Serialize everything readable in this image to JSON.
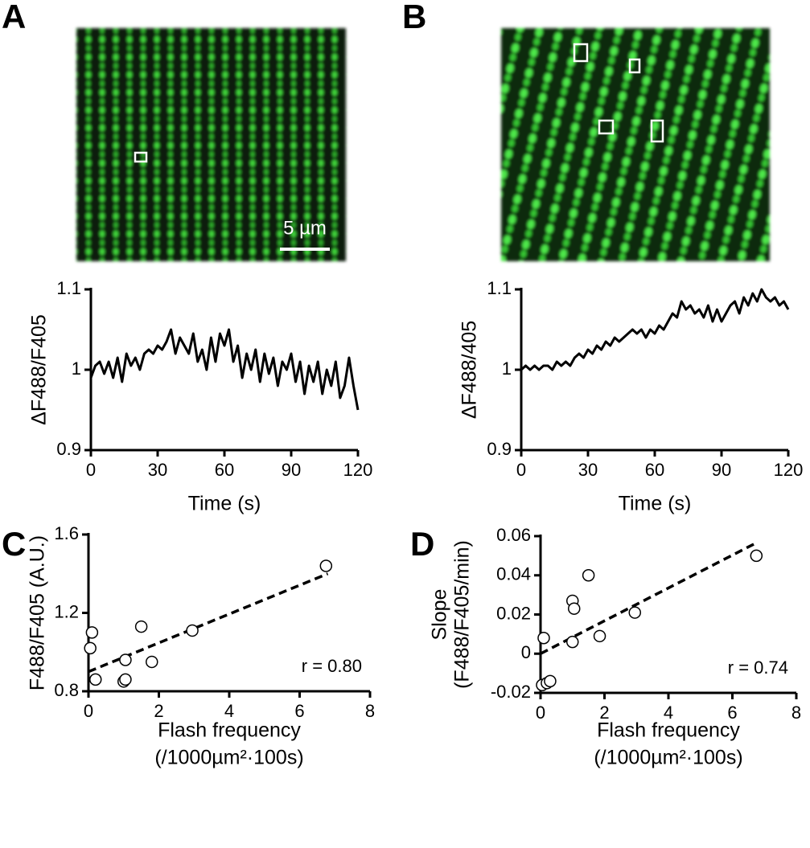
{
  "panel_labels": [
    "A",
    "B",
    "C",
    "D"
  ],
  "scale_bar": "5 µm",
  "chart_data": [
    {
      "type": "line",
      "ylabel": "ΔF488/F405",
      "xlabel": "Time (s)",
      "xlim": [
        0,
        120
      ],
      "xticks": [
        0,
        30,
        60,
        90,
        120
      ],
      "ylim": [
        0.9,
        1.1
      ],
      "yticks": [
        0.9,
        1,
        1.1
      ],
      "color": "#000000",
      "x": [
        0,
        2,
        4,
        6,
        8,
        10,
        12,
        14,
        16,
        18,
        20,
        22,
        24,
        26,
        28,
        30,
        32,
        34,
        36,
        38,
        40,
        42,
        44,
        46,
        48,
        50,
        52,
        54,
        56,
        58,
        60,
        62,
        64,
        66,
        68,
        70,
        72,
        74,
        76,
        78,
        80,
        82,
        84,
        86,
        88,
        90,
        92,
        94,
        96,
        98,
        100,
        102,
        104,
        106,
        108,
        110,
        112,
        114,
        116,
        118,
        120
      ],
      "values": [
        0.99,
        1.005,
        1.01,
        0.995,
        1.01,
        0.99,
        1.015,
        0.985,
        1.02,
        1.005,
        1.015,
        1.0,
        1.02,
        1.025,
        1.02,
        1.03,
        1.025,
        1.035,
        1.05,
        1.02,
        1.04,
        1.03,
        1.02,
        1.045,
        1.01,
        1.025,
        1.0,
        1.04,
        1.01,
        1.045,
        1.03,
        1.05,
        1.01,
        1.03,
        0.99,
        1.02,
        1.0,
        1.025,
        0.985,
        1.02,
        0.995,
        1.015,
        0.98,
        1.01,
        1.0,
        1.02,
        0.985,
        1.01,
        0.97,
        1.005,
        0.985,
        1.01,
        0.97,
        1.0,
        0.98,
        1.01,
        0.965,
        0.98,
        1.015,
        0.98,
        0.95
      ]
    },
    {
      "type": "line",
      "ylabel": "ΔF488/405",
      "xlabel": "Time (s)",
      "xlim": [
        0,
        120
      ],
      "xticks": [
        0,
        30,
        60,
        90,
        120
      ],
      "ylim": [
        0.9,
        1.1
      ],
      "yticks": [
        0.9,
        1,
        1.1
      ],
      "color": "#000000",
      "x": [
        0,
        2,
        4,
        6,
        8,
        10,
        12,
        14,
        16,
        18,
        20,
        22,
        24,
        26,
        28,
        30,
        32,
        34,
        36,
        38,
        40,
        42,
        44,
        46,
        48,
        50,
        52,
        54,
        56,
        58,
        60,
        62,
        64,
        66,
        68,
        70,
        72,
        74,
        76,
        78,
        80,
        82,
        84,
        86,
        88,
        90,
        92,
        94,
        96,
        98,
        100,
        102,
        104,
        106,
        108,
        110,
        112,
        114,
        116,
        118,
        120
      ],
      "values": [
        1.0,
        1.005,
        1.0,
        1.005,
        1.0,
        1.005,
        1.005,
        1.0,
        1.01,
        1.005,
        1.01,
        1.005,
        1.015,
        1.02,
        1.015,
        1.025,
        1.02,
        1.03,
        1.025,
        1.035,
        1.03,
        1.04,
        1.035,
        1.04,
        1.045,
        1.05,
        1.045,
        1.05,
        1.04,
        1.05,
        1.045,
        1.055,
        1.05,
        1.06,
        1.07,
        1.065,
        1.085,
        1.075,
        1.08,
        1.07,
        1.075,
        1.065,
        1.08,
        1.06,
        1.075,
        1.06,
        1.07,
        1.08,
        1.085,
        1.07,
        1.09,
        1.08,
        1.095,
        1.085,
        1.1,
        1.09,
        1.085,
        1.09,
        1.08,
        1.085,
        1.075
      ]
    },
    {
      "type": "scatter",
      "ylabel": [
        "F488/F405 (A.U.)"
      ],
      "xlabel": [
        "Flash frequency",
        "(/1000µm²·100s)"
      ],
      "xlim": [
        0,
        8
      ],
      "xticks": [
        0,
        2,
        4,
        6,
        8
      ],
      "ylim": [
        0.8,
        1.6
      ],
      "yticks": [
        0.8,
        1.2,
        1.6
      ],
      "x": [
        0.05,
        0.1,
        0.2,
        1.0,
        1.05,
        1.05,
        1.5,
        1.8,
        2.95,
        6.75
      ],
      "values": [
        1.02,
        1.1,
        0.86,
        0.85,
        0.86,
        0.96,
        1.13,
        0.95,
        1.11,
        1.44
      ],
      "fit": {
        "x": [
          0,
          6.8
        ],
        "y": [
          0.9,
          1.4
        ]
      },
      "annotation": "r = 0.80"
    },
    {
      "type": "scatter",
      "ylabel": [
        "Slope",
        "(F488/F405/min)"
      ],
      "xlabel": [
        "Flash frequency",
        "(/1000µm²·100s)"
      ],
      "xlim": [
        0,
        8
      ],
      "xticks": [
        0,
        2,
        4,
        6,
        8
      ],
      "ylim": [
        -0.02,
        0.06
      ],
      "yticks": [
        -0.02,
        0,
        0.02,
        0.04,
        0.06
      ],
      "x": [
        0.05,
        0.1,
        0.2,
        0.3,
        1.0,
        1.0,
        1.05,
        1.5,
        1.85,
        2.95,
        6.75
      ],
      "values": [
        -0.016,
        0.008,
        -0.015,
        -0.014,
        0.006,
        0.027,
        0.023,
        0.04,
        0.009,
        0.021,
        0.05
      ],
      "fit": {
        "x": [
          0,
          6.8
        ],
        "y": [
          0,
          0.057
        ]
      },
      "annotation": "r = 0.74"
    }
  ]
}
